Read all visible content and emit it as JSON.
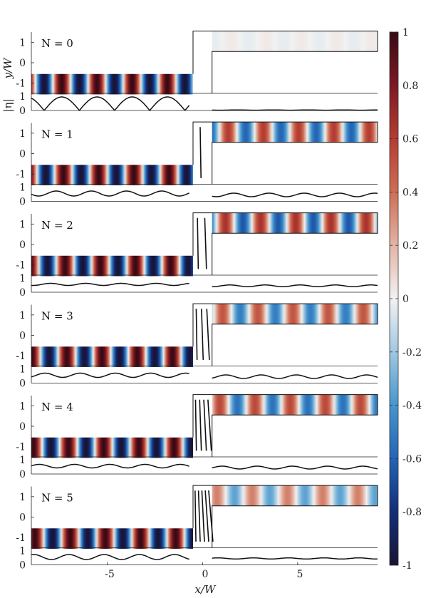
{
  "chart_data": {
    "type": "heatmap",
    "xlabel": "x/W",
    "ylabel": "y/W",
    "eta_label": "|η|",
    "xlim": [
      -9,
      9.2
    ],
    "xticks": [
      -5,
      0,
      5
    ],
    "yticks_field": [
      1,
      0,
      -1
    ],
    "yticks_eta": [
      1,
      0
    ],
    "colorbar": {
      "colormap": "diverging red-white-blue",
      "range": [
        -1,
        1
      ],
      "ticks": [
        "1",
        "0.8",
        "0.6",
        "0.4",
        "0.2",
        "0",
        "-0.2",
        "-0.4",
        "-0.6",
        "-0.8",
        "-1"
      ]
    },
    "panels": [
      {
        "label": "N = 0",
        "N": 0,
        "transmitted_amplitude": 0.03,
        "incident_eta_ripple": 0.9,
        "transmitted_eta_ripple": 0.02
      },
      {
        "label": "N = 1",
        "N": 1,
        "transmitted_amplitude": 0.6,
        "incident_eta_ripple": 0.35,
        "transmitted_eta_ripple": 0.25
      },
      {
        "label": "N = 2",
        "N": 2,
        "transmitted_amplitude": 0.65,
        "incident_eta_ripple": 0.15,
        "transmitted_eta_ripple": 0.12
      },
      {
        "label": "N = 3",
        "N": 3,
        "transmitted_amplitude": 0.5,
        "incident_eta_ripple": 0.3,
        "transmitted_eta_ripple": 0.25
      },
      {
        "label": "N = 4",
        "N": 4,
        "transmitted_amplitude": 0.55,
        "incident_eta_ripple": 0.25,
        "transmitted_eta_ripple": 0.2
      },
      {
        "label": "N = 5",
        "N": 5,
        "transmitted_amplitude": 0.35,
        "incident_eta_ripple": 0.35,
        "transmitted_eta_ripple": 0.08
      }
    ]
  }
}
